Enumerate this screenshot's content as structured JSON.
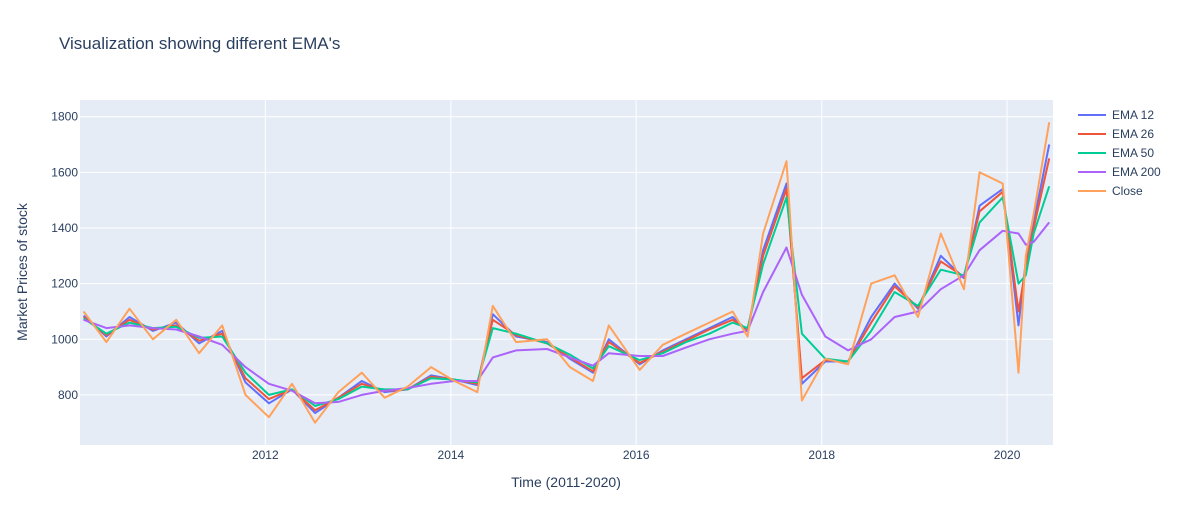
{
  "chart_data": {
    "type": "line",
    "title": "Visualization showing different EMA's",
    "xlabel": "Time (2011-2020)",
    "ylabel": "Market Prices of stock",
    "xlim": [
      "2010-01-01",
      "2020-06-30"
    ],
    "ylim": [
      620,
      1860
    ],
    "x_ticks": [
      "2012",
      "2014",
      "2016",
      "2018",
      "2020"
    ],
    "y_ticks": [
      800,
      1000,
      1200,
      1400,
      1600,
      1800
    ],
    "grid": true,
    "legend_position": "top-right",
    "x": [
      "2010-01",
      "2010-04",
      "2010-07",
      "2010-10",
      "2011-01",
      "2011-04",
      "2011-07",
      "2011-10",
      "2012-01",
      "2012-04",
      "2012-07",
      "2012-10",
      "2013-01",
      "2013-04",
      "2013-07",
      "2013-10",
      "2014-01",
      "2014-04",
      "2014-06",
      "2014-09",
      "2015-01",
      "2015-04",
      "2015-07",
      "2015-09",
      "2016-01",
      "2016-04",
      "2016-07",
      "2016-10",
      "2017-01",
      "2017-03",
      "2017-05",
      "2017-08",
      "2017-10",
      "2018-01",
      "2018-04",
      "2018-07",
      "2018-10",
      "2019-01",
      "2019-04",
      "2019-07",
      "2019-09",
      "2019-12",
      "2020-02",
      "2020-03",
      "2020-04",
      "2020-06"
    ],
    "series": [
      {
        "name": "EMA 12",
        "color": "#636efa",
        "values": [
          1085,
          1010,
          1080,
          1030,
          1060,
          985,
          1030,
          845,
          770,
          820,
          735,
          790,
          850,
          810,
          820,
          870,
          855,
          835,
          1090,
          1010,
          990,
          930,
          880,
          1000,
          910,
          960,
          1000,
          1040,
          1080,
          1030,
          1320,
          1560,
          840,
          920,
          920,
          1080,
          1200,
          1110,
          1300,
          1220,
          1480,
          1540,
          1050,
          1280,
          1420,
          1700
        ]
      },
      {
        "name": "EMA 26",
        "color": "#ef553b",
        "values": [
          1080,
          1015,
          1070,
          1035,
          1050,
          995,
          1020,
          860,
          785,
          820,
          745,
          790,
          840,
          815,
          820,
          865,
          855,
          840,
          1070,
          1015,
          985,
          935,
          885,
          990,
          915,
          955,
          995,
          1035,
          1070,
          1035,
          1300,
          1540,
          860,
          925,
          920,
          1060,
          1190,
          1115,
          1280,
          1225,
          1460,
          1530,
          1100,
          1260,
          1400,
          1650
        ]
      },
      {
        "name": "EMA 50",
        "color": "#00cc96",
        "values": [
          1075,
          1020,
          1060,
          1040,
          1045,
          1005,
          1010,
          880,
          800,
          820,
          760,
          785,
          830,
          820,
          820,
          860,
          855,
          845,
          1040,
          1020,
          985,
          945,
          895,
          975,
          925,
          950,
          990,
          1020,
          1060,
          1040,
          1270,
          1510,
          1020,
          930,
          920,
          1030,
          1170,
          1120,
          1250,
          1230,
          1420,
          1510,
          1200,
          1230,
          1380,
          1550
        ]
      },
      {
        "name": "EMA 200",
        "color": "#ab63fa",
        "values": [
          1070,
          1040,
          1050,
          1040,
          1035,
          1010,
          980,
          900,
          840,
          815,
          770,
          775,
          800,
          815,
          825,
          840,
          850,
          850,
          935,
          960,
          965,
          935,
          905,
          950,
          940,
          940,
          970,
          1000,
          1020,
          1030,
          1170,
          1330,
          1160,
          1010,
          960,
          1000,
          1080,
          1100,
          1180,
          1230,
          1320,
          1390,
          1380,
          1340,
          1350,
          1420
        ]
      },
      {
        "name": "Close",
        "color": "#ffa15a",
        "values": [
          1100,
          990,
          1110,
          1000,
          1070,
          950,
          1050,
          800,
          720,
          840,
          700,
          810,
          880,
          790,
          830,
          900,
          850,
          810,
          1120,
          990,
          1000,
          900,
          850,
          1050,
          890,
          980,
          1020,
          1060,
          1100,
          1010,
          1380,
          1640,
          780,
          930,
          910,
          1200,
          1230,
          1080,
          1380,
          1180,
          1600,
          1560,
          880,
          1300,
          1450,
          1780
        ]
      }
    ]
  }
}
